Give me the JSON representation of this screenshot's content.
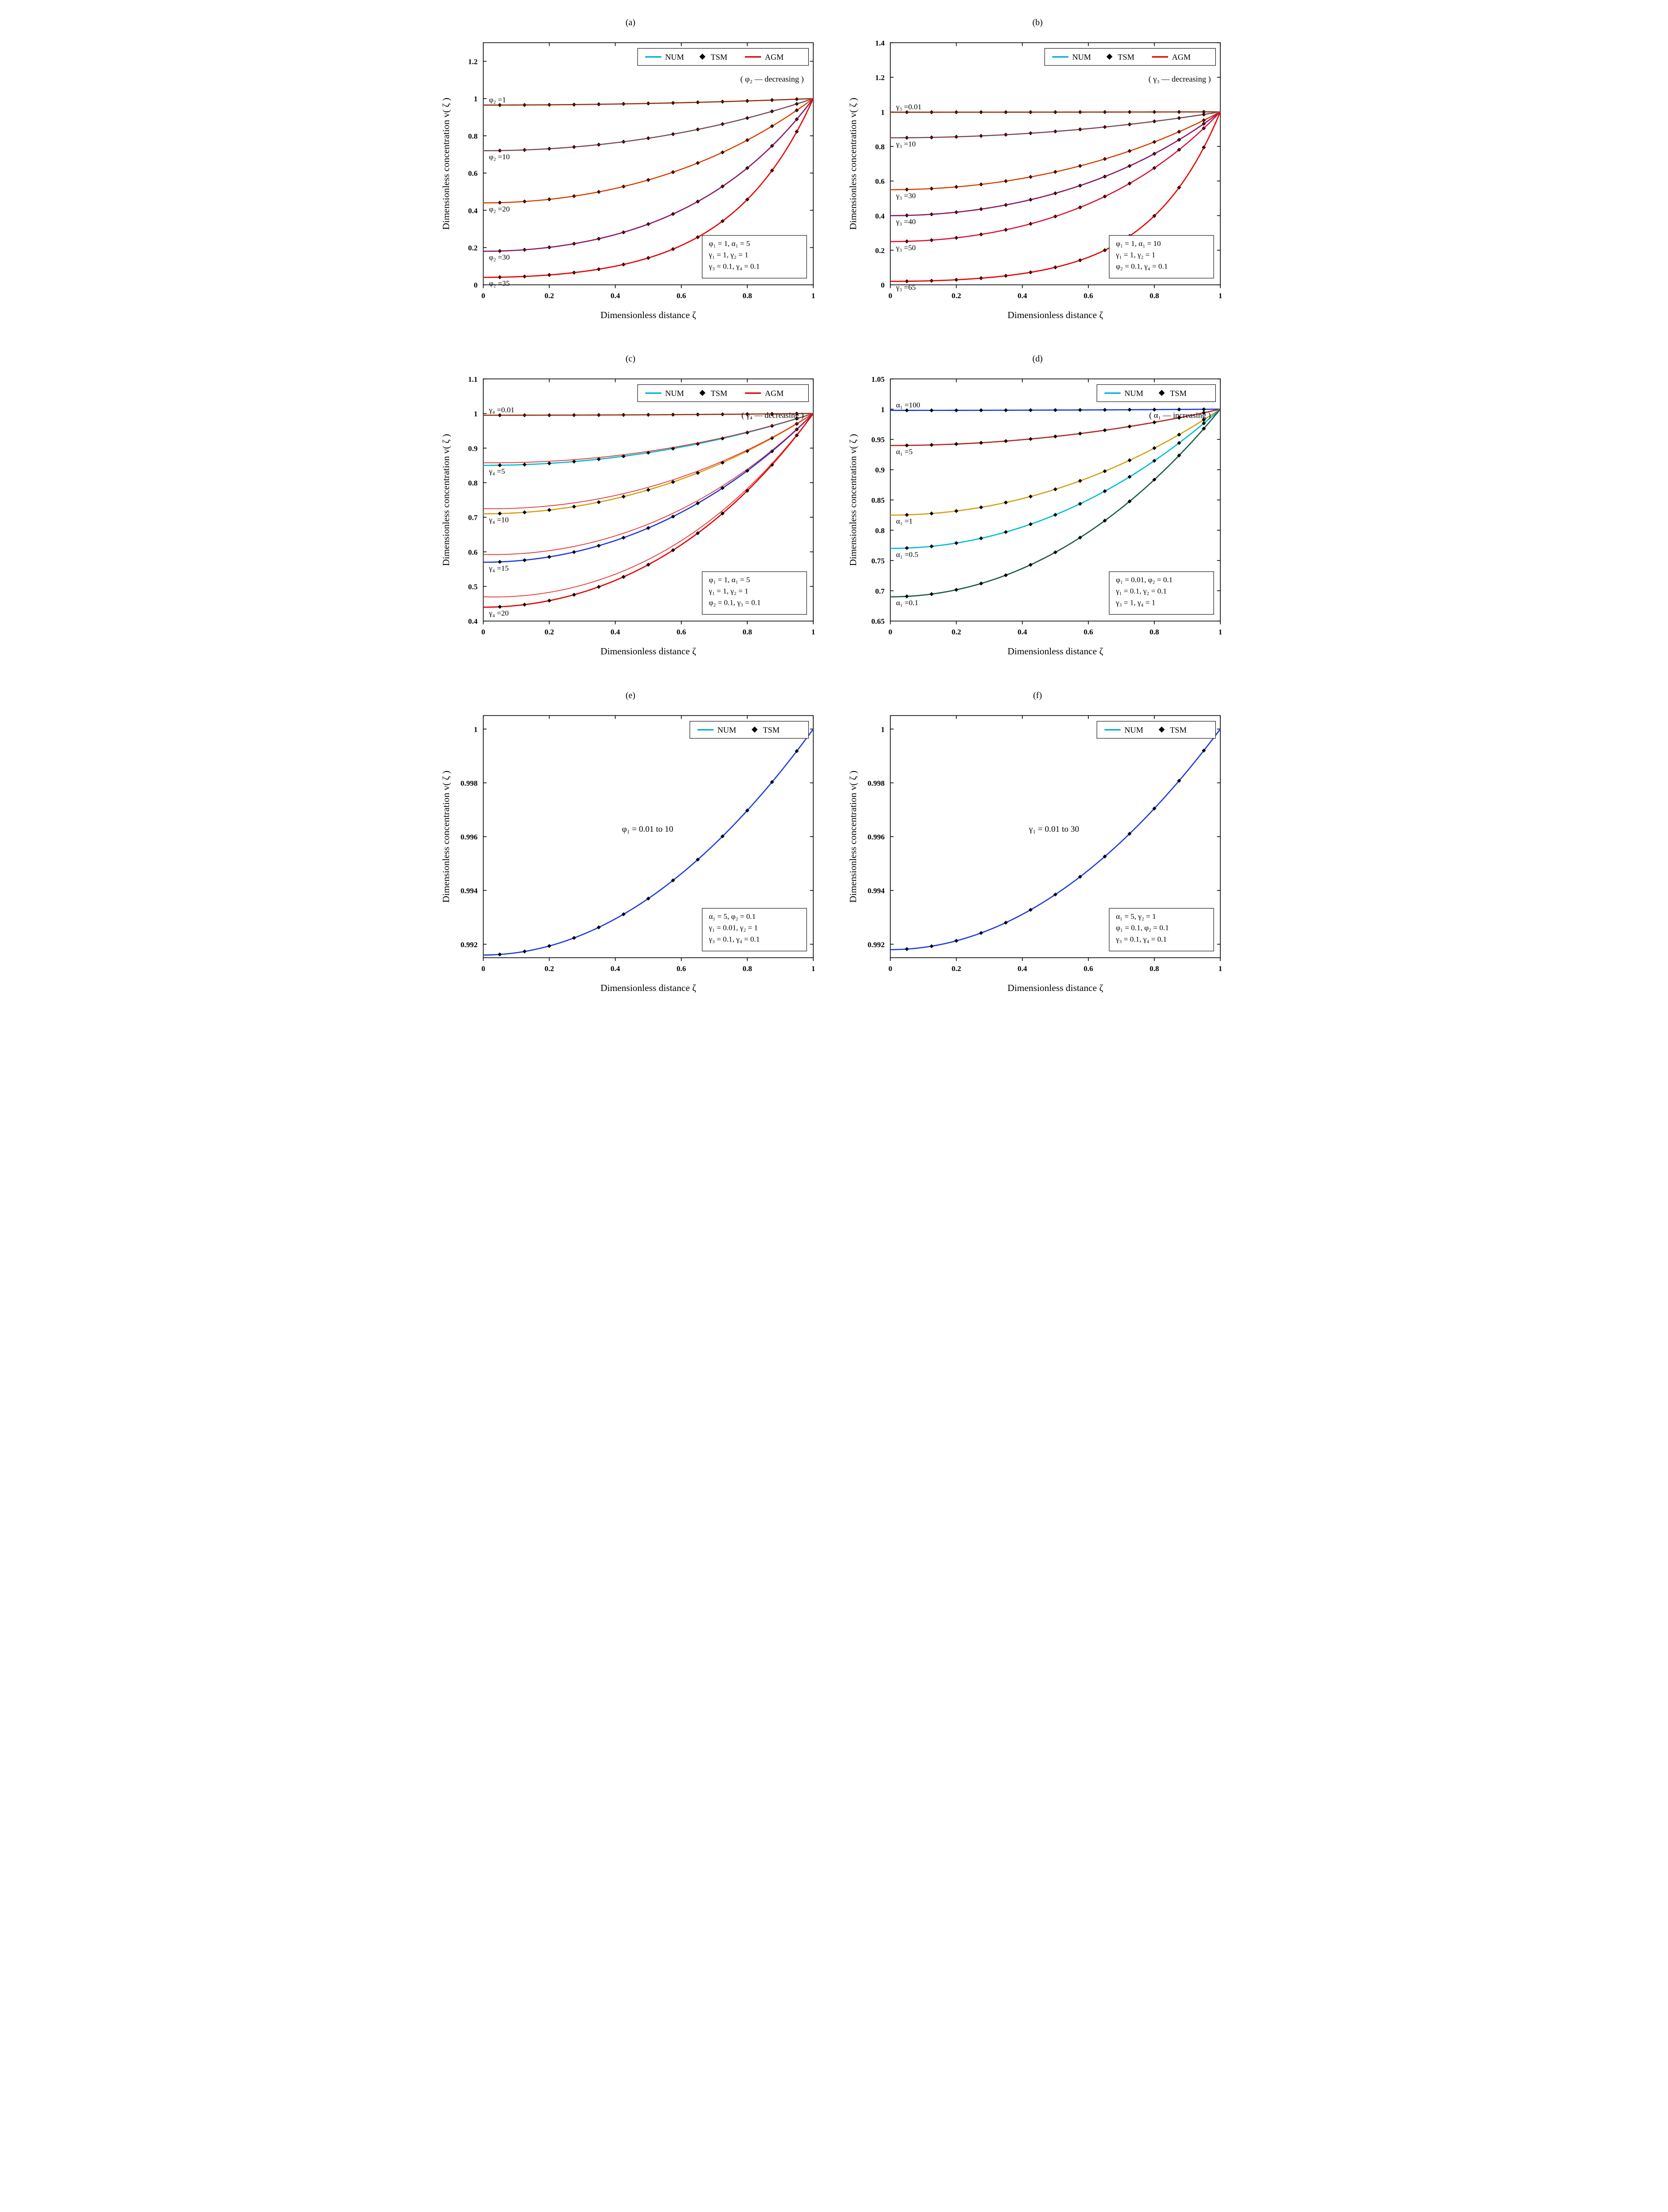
{
  "colors": {
    "axis": "#000000",
    "num": "#00aedb",
    "agm": "#e60000",
    "tsm": "#000000"
  },
  "axis_label_x": "Dimensionless distance   ζ",
  "axis_label_y": "Dimensionless concentration  v( ζ )",
  "panels": {
    "a": {
      "label": "(a)",
      "x_ticks": [
        0,
        0.2,
        0.4,
        0.6,
        0.8,
        1
      ],
      "y_ticks": [
        0,
        0.2,
        0.4,
        0.6,
        0.8,
        1,
        1.2
      ],
      "ylim": [
        0,
        1.3
      ],
      "legend": [
        "NUM",
        "TSM",
        "AGM"
      ],
      "direction": "( φ₂ — decreasing )",
      "params": [
        "φ₁ = 1, α₁ = 5",
        "γ₁ = 1, γ₂ = 1",
        "γ₃ = 0.1, γ₄ = 0.1"
      ],
      "series": [
        {
          "name": "φ₂ =1",
          "y0": 0.965,
          "color": "#2e7d32"
        },
        {
          "name": "φ₂ =10",
          "y0": 0.72,
          "color": "#00bcd4"
        },
        {
          "name": "φ₂ =20",
          "y0": 0.44,
          "color": "#d4a017"
        },
        {
          "name": "φ₂ =30",
          "y0": 0.18,
          "color": "#1e3ae0"
        },
        {
          "name": "φ₂ =35",
          "y0": 0.04,
          "color": "#e60000"
        }
      ]
    },
    "b": {
      "label": "(b)",
      "x_ticks": [
        0,
        0.2,
        0.4,
        0.6,
        0.8,
        1
      ],
      "y_ticks": [
        0,
        0.2,
        0.4,
        0.6,
        0.8,
        1,
        1.2,
        1.4
      ],
      "ylim": [
        0,
        1.4
      ],
      "legend": [
        "NUM",
        "TSM",
        "AGM"
      ],
      "direction": "( γ₃ — decreasing )",
      "params": [
        "φ₁ = 1, α₁ = 10",
        "γ₁ = 1, γ₂ = 1",
        "φ₂ = 0.1, γ₄ = 0.1"
      ],
      "series": [
        {
          "name": "γ₃ =0.01",
          "y0": 0.998,
          "color": "#2e7d32"
        },
        {
          "name": "γ₃ =10",
          "y0": 0.85,
          "color": "#00bcd4"
        },
        {
          "name": "γ₃ =30",
          "y0": 0.55,
          "color": "#d4a017"
        },
        {
          "name": "γ₃ =40",
          "y0": 0.4,
          "color": "#1e3ae0"
        },
        {
          "name": "γ₃ =50",
          "y0": 0.25,
          "color": "#d63384"
        },
        {
          "name": "γ₃ =65",
          "y0": 0.02,
          "color": "#e60000"
        }
      ]
    },
    "c": {
      "label": "(c)",
      "x_ticks": [
        0,
        0.2,
        0.4,
        0.6,
        0.8,
        1
      ],
      "y_ticks": [
        0.4,
        0.5,
        0.6,
        0.7,
        0.8,
        0.9,
        1.0,
        1.1
      ],
      "ylim": [
        0.4,
        1.1
      ],
      "legend": [
        "NUM",
        "TSM",
        "AGM"
      ],
      "direction": "( γ₄ — decreasing )",
      "params": [
        "φ₁ = 1, α₁ = 5",
        "γ₁ = 1, γ₂ = 1",
        "φ₂ = 0.1, γ₃ = 0.1"
      ],
      "series": [
        {
          "name": "γ₄ =0.01",
          "y0": 0.995,
          "color": "#2e7d32"
        },
        {
          "name": "γ₄ =5",
          "y0": 0.85,
          "color": "#00bcd4"
        },
        {
          "name": "γ₄ =10",
          "y0": 0.71,
          "color": "#d4a017"
        },
        {
          "name": "γ₄ =15",
          "y0": 0.57,
          "color": "#1e3ae0"
        },
        {
          "name": "γ₄ =20",
          "y0": 0.44,
          "color": "#e60000"
        }
      ],
      "agm_offset": 0.03
    },
    "d": {
      "label": "(d)",
      "x_ticks": [
        0,
        0.2,
        0.4,
        0.6,
        0.8,
        1
      ],
      "y_ticks": [
        0.65,
        0.7,
        0.75,
        0.8,
        0.85,
        0.9,
        0.95,
        1.0,
        1.05
      ],
      "ylim": [
        0.65,
        1.05
      ],
      "legend": [
        "NUM",
        "TSM"
      ],
      "direction": "( α₁ — increasing )",
      "params": [
        "φ₁ = 0.01, φ₂ = 0.1",
        "γ₁ = 0.1, γ₂ = 0.1",
        "γ₃ = 1, γ₄ = 1"
      ],
      "series": [
        {
          "name": "α₁ =100",
          "y0": 0.998,
          "color": "#1e3ae0"
        },
        {
          "name": "α₁ =5",
          "y0": 0.94,
          "color": "#b02a2a"
        },
        {
          "name": "α₁ =1",
          "y0": 0.825,
          "color": "#d4a017"
        },
        {
          "name": "α₁ =0.5",
          "y0": 0.77,
          "color": "#00bcd4"
        },
        {
          "name": "α₁ =0.1",
          "y0": 0.69,
          "color": "#1a5a4a"
        }
      ]
    },
    "e": {
      "label": "(e)",
      "x_ticks": [
        0,
        0.2,
        0.4,
        0.6,
        0.8,
        1
      ],
      "y_ticks": [
        0.992,
        0.994,
        0.996,
        0.998,
        1.0
      ],
      "ylim": [
        0.9915,
        1.0005
      ],
      "legend": [
        "NUM",
        "TSM"
      ],
      "direction": "",
      "center_label": "φ₁ = 0.01 to 10",
      "params": [
        "α₁ = 5, φ₂ = 0.1",
        "γ₁ = 0.01, γ₂ = 1",
        "γ₃ = 0.1, γ₄ = 0.1"
      ],
      "series": [
        {
          "name": "",
          "y0": 0.9916,
          "color": "#1e3ae0"
        }
      ]
    },
    "f": {
      "label": "(f)",
      "x_ticks": [
        0,
        0.2,
        0.4,
        0.6,
        0.8,
        1
      ],
      "y_ticks": [
        0.992,
        0.994,
        0.996,
        0.998,
        1.0
      ],
      "ylim": [
        0.9915,
        1.0005
      ],
      "legend": [
        "NUM",
        "TSM"
      ],
      "direction": "",
      "center_label": "γ₁ = 0.01 to 30",
      "params": [
        "α₁ = 5, γ₂ = 1",
        "φ₁ = 0.1, φ₂ = 0.1",
        "γ₃ = 0.1, γ₄ = 0.1"
      ],
      "series": [
        {
          "name": "",
          "y0": 0.9918,
          "color": "#1e3ae0"
        }
      ]
    }
  }
}
